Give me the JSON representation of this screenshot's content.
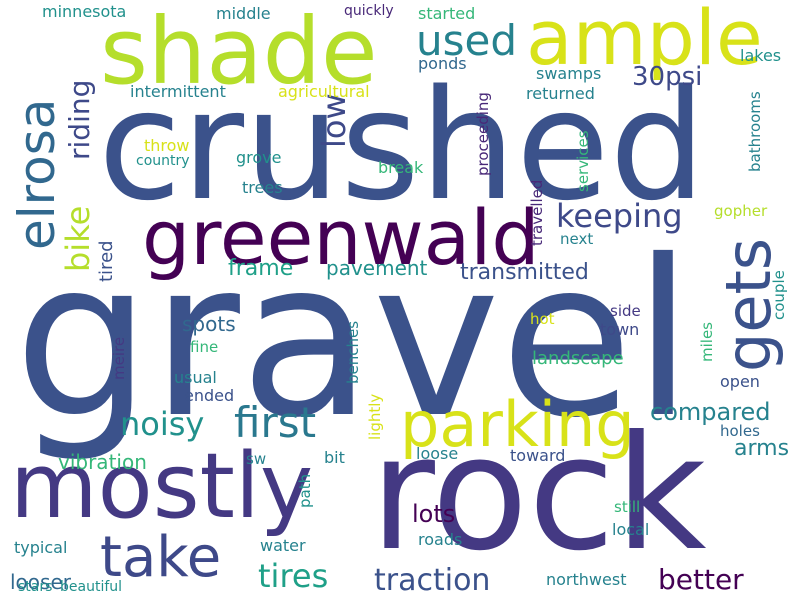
{
  "words": {
    "gravel": "gravel",
    "crushed": "crushed",
    "rock": "rock",
    "mostly": "mostly",
    "shade": "shade",
    "greenwald": "greenwald",
    "ample": "ample",
    "parking": "parking",
    "gets": "gets",
    "elrosa": "elrosa",
    "take": "take",
    "first": "first",
    "used": "used",
    "keeping": "keeping",
    "better": "better",
    "traction": "traction",
    "tires": "tires",
    "noisy": "noisy",
    "bike": "bike",
    "riding": "riding",
    "low": "low",
    "30psi": "30psi",
    "compared": "compared",
    "transmitted": "transmitted",
    "frame": "frame",
    "pavement": "pavement",
    "vibration": "vibration",
    "arms": "arms",
    "lots": "lots",
    "spots": "spots",
    "looser": "looser",
    "landscape": "landscape",
    "tired": "tired",
    "minnesota": "minnesota",
    "middle": "middle",
    "quickly": "quickly",
    "started": "started",
    "lakes": "lakes",
    "ponds": "ponds",
    "swamps": "swamps",
    "returned": "returned",
    "intermittent": "intermittent",
    "agricultural": "agricultural",
    "proceeding": "proceeding",
    "services": "services",
    "bathrooms": "bathrooms",
    "throw": "throw",
    "country": "country",
    "grove": "grove",
    "break": "break",
    "trees": "trees",
    "travelled": "travelled",
    "next": "next",
    "gopher": "gopher",
    "couple": "couple",
    "side": "side",
    "hot": "hot",
    "town": "town",
    "miles": "miles",
    "open": "open",
    "meire": "meire",
    "fine": "fine",
    "usual": "usual",
    "ended": "ended",
    "benches": "benches",
    "lightly": "lightly",
    "holes": "holes",
    "sw": "sw",
    "bit": "bit",
    "loose": "loose",
    "toward": "toward",
    "path": "path",
    "still": "still",
    "local": "local",
    "water": "water",
    "roads": "roads",
    "typical": "typical",
    "northwest": "northwest",
    "stars": "stars",
    "beautiful": "beautiful"
  },
  "colors": {
    "dark_purple": "#440154",
    "indigo": "#482878",
    "purple_blue": "#443983",
    "blue_violet": "#3e4989",
    "slate_blue": "#3b528b",
    "steel_blue": "#31688e",
    "teal_blue": "#2a788e",
    "teal": "#26828e",
    "sea_green": "#21918c",
    "green_teal": "#1fa088",
    "mint": "#35b779",
    "green": "#4ac16d",
    "light_green": "#6ece58",
    "lime": "#90d743",
    "yellow_green": "#b5de2b",
    "yellow": "#d8e219"
  }
}
